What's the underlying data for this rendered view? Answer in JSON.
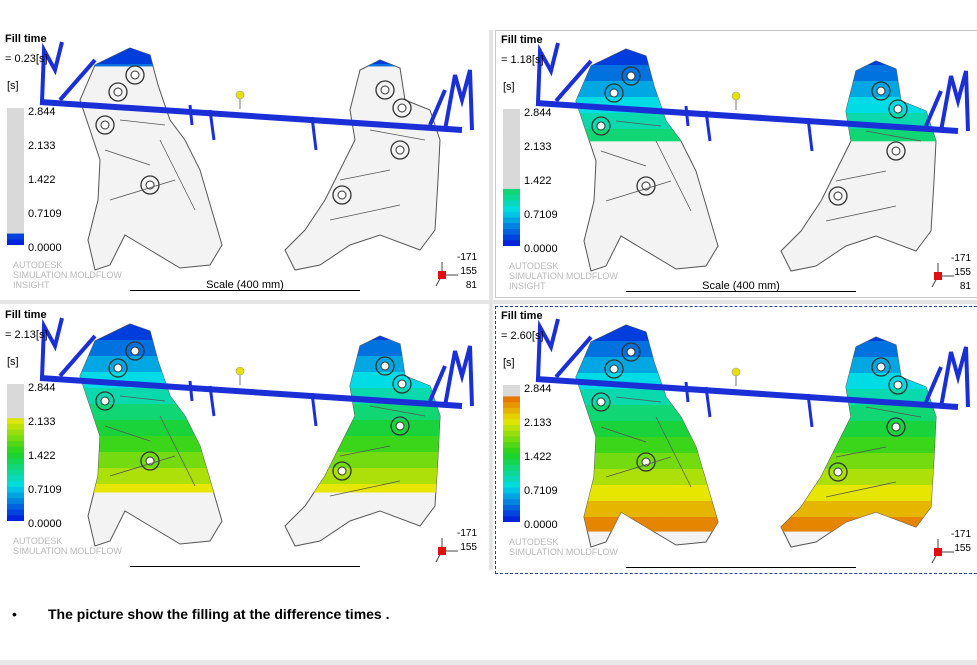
{
  "panels": [
    {
      "title": "Fill time",
      "time": "= 0.23[s]",
      "unit": "[s]",
      "ticks": [
        "2.844",
        "2.133",
        "1.422",
        "0.7109",
        "0.0000"
      ],
      "brand": [
        "AUTODESK",
        "SIMULATION MOLDFLOW",
        "INSIGHT"
      ],
      "scale": "Scale (400 mm)",
      "axes": [
        "-171",
        "155",
        "81"
      ],
      "fill": 0.08
    },
    {
      "title": "Fill time",
      "time": "= 1.18[s]",
      "unit": "[s]",
      "ticks": [
        "2.844",
        "2.133",
        "1.422",
        "0.7109",
        "0.0000"
      ],
      "brand": [
        "AUTODESK",
        "SIMULATION MOLDFLOW",
        "INSIGHT"
      ],
      "scale": "Scale (400 mm)",
      "axes": [
        "-171",
        "155",
        "81"
      ],
      "fill": 0.41
    },
    {
      "title": "Fill time",
      "time": "= 2.13[s]",
      "unit": "[s]",
      "ticks": [
        "2.844",
        "2.133",
        "1.422",
        "0.7109",
        "0.0000"
      ],
      "brand": [
        "AUTODESK",
        "SIMULATION MOLDFLOW",
        "",
        ""
      ],
      "scale": "",
      "axes": [
        "-171",
        "155",
        ""
      ],
      "fill": 0.75
    },
    {
      "title": "Fill time",
      "time": "= 2.60[s]",
      "unit": "[s]",
      "ticks": [
        "2.844",
        "2.133",
        "1.422",
        "0.7109",
        "0.0000"
      ],
      "brand": [
        "AUTODESK",
        "SIMULATION MOLDFLOW",
        "",
        ""
      ],
      "scale": "",
      "axes": [
        "-171",
        "155",
        ""
      ],
      "fill": 0.92
    }
  ],
  "caption": {
    "bullet": "•",
    "text": "The picture show the filling at the difference times ."
  },
  "colors": {
    "runner": "#1b2fd6",
    "gate": "#e8e000",
    "unfilled": "#f2f2f2"
  }
}
